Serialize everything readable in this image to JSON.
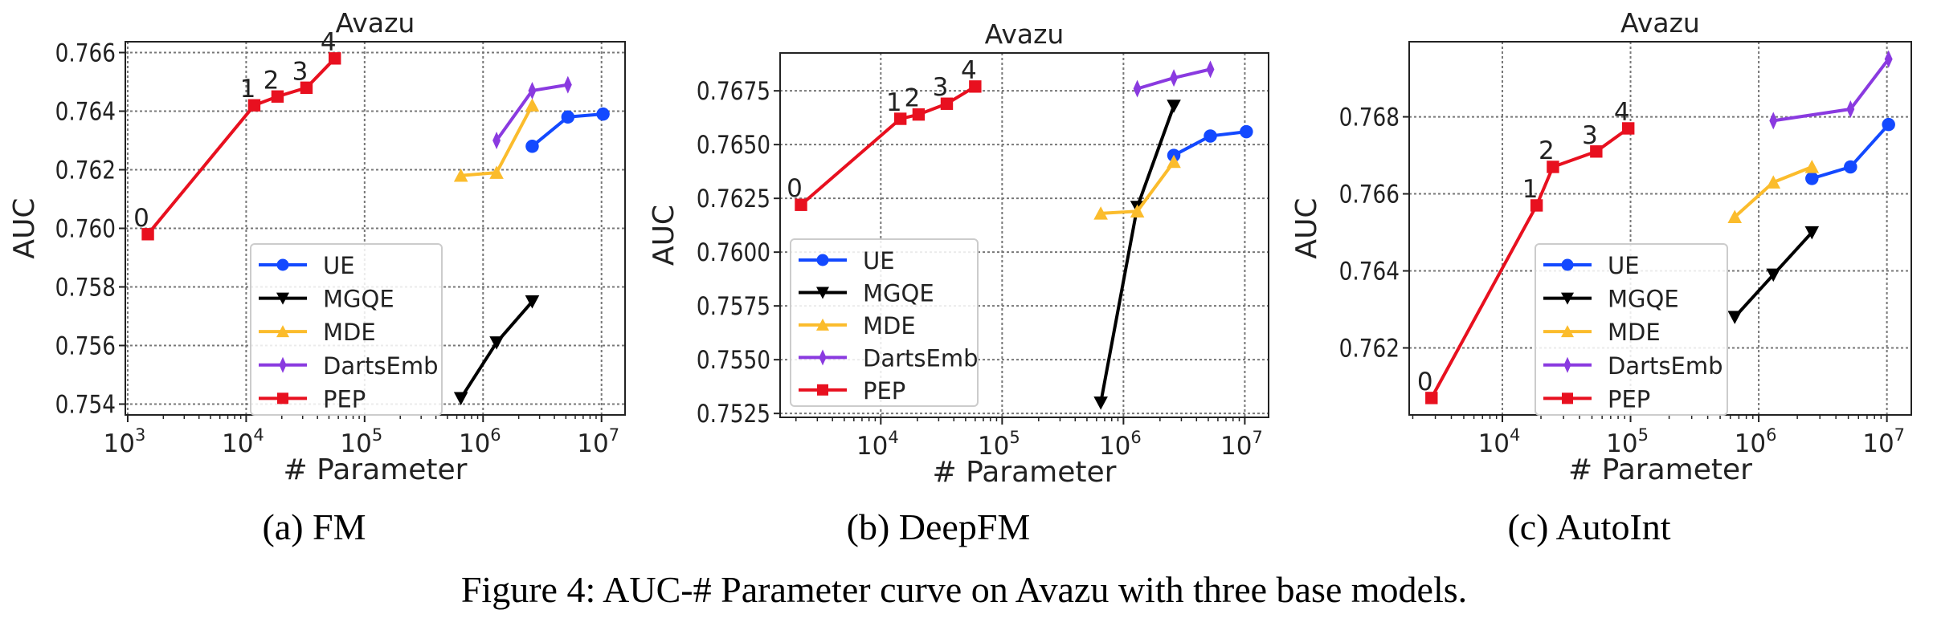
{
  "figure_caption": "Figure 4: AUC-# Parameter curve on Avazu with three base models.",
  "chart_data": [
    {
      "type": "line",
      "caption": "(a) FM",
      "title": "Avazu",
      "xlabel": "# Parameter",
      "ylabel": "AUC",
      "xscale": "log",
      "xlim": [
        955,
        15800000
      ],
      "ylim": [
        0.75363,
        0.76637
      ],
      "xticks_exp": [
        "3",
        "4",
        "5",
        "6",
        "7"
      ],
      "yticks": [
        0.754,
        0.756,
        0.758,
        0.76,
        0.762,
        0.764,
        0.766
      ],
      "ytick_labels": [
        "0.754",
        "0.756",
        "0.758",
        "0.760",
        "0.762",
        "0.764",
        "0.766"
      ],
      "grid": true,
      "legend": "lower-center-left",
      "point_labels": [
        "0",
        "1",
        "2",
        "3",
        "4"
      ],
      "series": [
        {
          "name": "UE",
          "color": "#1349ff",
          "marker": "circle",
          "x": [
            2600000,
            5200000,
            10300000
          ],
          "y": [
            0.7628,
            0.7638,
            0.7639
          ]
        },
        {
          "name": "MGQE",
          "color": "#000000",
          "marker": "triangle-down",
          "x": [
            650000,
            1300000,
            2600000
          ],
          "y": [
            0.7542,
            0.7561,
            0.7575
          ]
        },
        {
          "name": "MDE",
          "color": "#fbbc2c",
          "marker": "triangle-up",
          "x": [
            650000,
            1300000,
            2600000
          ],
          "y": [
            0.7618,
            0.7619,
            0.7642
          ]
        },
        {
          "name": "DartsEmb",
          "color": "#8a3ae0",
          "marker": "thin-diamond",
          "x": [
            1300000,
            2600000,
            5200000
          ],
          "y": [
            0.763,
            0.7647,
            0.7649
          ]
        },
        {
          "name": "PEP",
          "color": "#e8101f",
          "marker": "square",
          "x": [
            1480,
            11700,
            18400,
            32300,
            56000
          ],
          "y": [
            0.7598,
            0.7642,
            0.7645,
            0.7648,
            0.7658
          ]
        }
      ]
    },
    {
      "type": "line",
      "caption": "(b) DeepFM",
      "title": "Avazu",
      "xlabel": "# Parameter",
      "ylabel": "AUC",
      "xscale": "log",
      "xlim": [
        1480,
        15700000
      ],
      "ylim": [
        0.75232,
        0.76926
      ],
      "xticks_exp": [
        "4",
        "5",
        "6",
        "7"
      ],
      "yticks": [
        0.7525,
        0.755,
        0.7575,
        0.76,
        0.7625,
        0.765,
        0.7675
      ],
      "ytick_labels": [
        "0.7525",
        "0.7550",
        "0.7575",
        "0.7600",
        "0.7625",
        "0.7650",
        "0.7675"
      ],
      "grid": true,
      "legend": "lower-left",
      "point_labels": [
        "0",
        "1",
        "2",
        "3",
        "4"
      ],
      "series": [
        {
          "name": "UE",
          "color": "#1349ff",
          "marker": "circle",
          "x": [
            2600000,
            5200000,
            10300000
          ],
          "y": [
            0.7645,
            0.7654,
            0.7656
          ]
        },
        {
          "name": "MGQE",
          "color": "#000000",
          "marker": "triangle-down",
          "x": [
            650000,
            1300000,
            2600000
          ],
          "y": [
            0.753,
            0.7621,
            0.7668
          ]
        },
        {
          "name": "MDE",
          "color": "#fbbc2c",
          "marker": "triangle-up",
          "x": [
            650000,
            1300000,
            2600000
          ],
          "y": [
            0.7618,
            0.7619,
            0.7642
          ]
        },
        {
          "name": "DartsEmb",
          "color": "#8a3ae0",
          "marker": "thin-diamond",
          "x": [
            1300000,
            2600000,
            5200000
          ],
          "y": [
            0.7676,
            0.7681,
            0.7685
          ]
        },
        {
          "name": "PEP",
          "color": "#e8101f",
          "marker": "square",
          "x": [
            2200,
            14500,
            20500,
            35000,
            60000
          ],
          "y": [
            0.7622,
            0.7662,
            0.7664,
            0.7669,
            0.7677
          ]
        }
      ]
    },
    {
      "type": "line",
      "caption": "(c) AutoInt",
      "title": "Avazu",
      "xlabel": "# Parameter",
      "ylabel": "AUC",
      "xscale": "log",
      "xlim": [
        1875,
        15500000
      ],
      "ylim": [
        0.76026,
        0.76995
      ],
      "xticks_exp": [
        "4",
        "5",
        "6",
        "7"
      ],
      "yticks": [
        0.762,
        0.764,
        0.766,
        0.768
      ],
      "ytick_labels": [
        "0.762",
        "0.764",
        "0.766",
        "0.768"
      ],
      "grid": true,
      "legend": "lower-center-left",
      "point_labels": [
        "0",
        "1",
        "2",
        "3",
        "4"
      ],
      "series": [
        {
          "name": "UE",
          "color": "#1349ff",
          "marker": "circle",
          "x": [
            2600000,
            5200000,
            10300000
          ],
          "y": [
            0.7664,
            0.7667,
            0.7678
          ]
        },
        {
          "name": "MGQE",
          "color": "#000000",
          "marker": "triangle-down",
          "x": [
            650000,
            1300000,
            2600000
          ],
          "y": [
            0.7628,
            0.7639,
            0.765
          ]
        },
        {
          "name": "MDE",
          "color": "#fbbc2c",
          "marker": "triangle-up",
          "x": [
            650000,
            1300000,
            2600000
          ],
          "y": [
            0.7654,
            0.7663,
            0.7667
          ]
        },
        {
          "name": "DartsEmb",
          "color": "#8a3ae0",
          "marker": "thin-diamond",
          "x": [
            1300000,
            5200000,
            10300000
          ],
          "y": [
            0.7679,
            0.7682,
            0.7695
          ]
        },
        {
          "name": "PEP",
          "color": "#e8101f",
          "marker": "square",
          "x": [
            2800,
            18500,
            24800,
            54000,
            96000
          ],
          "y": [
            0.7607,
            0.7657,
            0.7667,
            0.7671,
            0.7677
          ]
        }
      ]
    }
  ]
}
